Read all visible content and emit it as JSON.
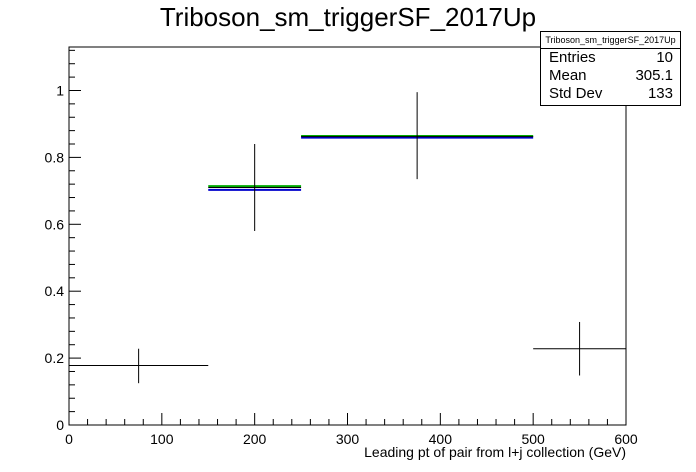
{
  "page": {
    "title": "Triboson_sm_triggerSF_2017Up"
  },
  "stats_box": {
    "name": "Triboson_sm_triggerSF_2017Up",
    "entries_label": "Entries",
    "entries_value": "10",
    "mean_label": "Mean",
    "mean_value": "305.1",
    "stddev_label": "Std Dev",
    "stddev_value": "133"
  },
  "colors": {
    "data": "#000000",
    "green": "#00aa00",
    "blue": "#0000cc"
  },
  "chart_data": {
    "type": "scatter",
    "title": "Triboson_sm_triggerSF_2017Up",
    "xlabel": "Leading pt of pair from l+j collection (GeV)",
    "ylabel": "",
    "xlim": [
      0,
      600
    ],
    "ylim": [
      0,
      1.13
    ],
    "x_ticks": [
      0,
      100,
      200,
      300,
      400,
      500,
      600
    ],
    "y_ticks": [
      0,
      0.2,
      0.4,
      0.6,
      0.8,
      1
    ],
    "grid": false,
    "series": [
      {
        "style": "errorbars",
        "color": "#000000",
        "points": [
          {
            "x": 75,
            "xlow": 0,
            "xhigh": 150,
            "y": 0.178,
            "ylow": 0.125,
            "yhigh": 0.228
          },
          {
            "x": 200,
            "xlow": 150,
            "xhigh": 250,
            "y": 0.71,
            "ylow": 0.58,
            "yhigh": 0.84
          },
          {
            "x": 375,
            "xlow": 250,
            "xhigh": 500,
            "y": 0.862,
            "ylow": 0.735,
            "yhigh": 0.995
          },
          {
            "x": 550,
            "xlow": 500,
            "xhigh": 600,
            "y": 0.228,
            "ylow": 0.148,
            "yhigh": 0.308
          }
        ]
      },
      {
        "style": "step",
        "color": "#00aa00",
        "bins": [
          {
            "xlow": 150,
            "xhigh": 250,
            "y": 0.714
          },
          {
            "xlow": 250,
            "xhigh": 500,
            "y": 0.864
          }
        ]
      },
      {
        "style": "step",
        "color": "#0000cc",
        "bins": [
          {
            "xlow": 150,
            "xhigh": 250,
            "y": 0.703
          },
          {
            "xlow": 250,
            "xhigh": 500,
            "y": 0.859
          }
        ]
      }
    ]
  }
}
